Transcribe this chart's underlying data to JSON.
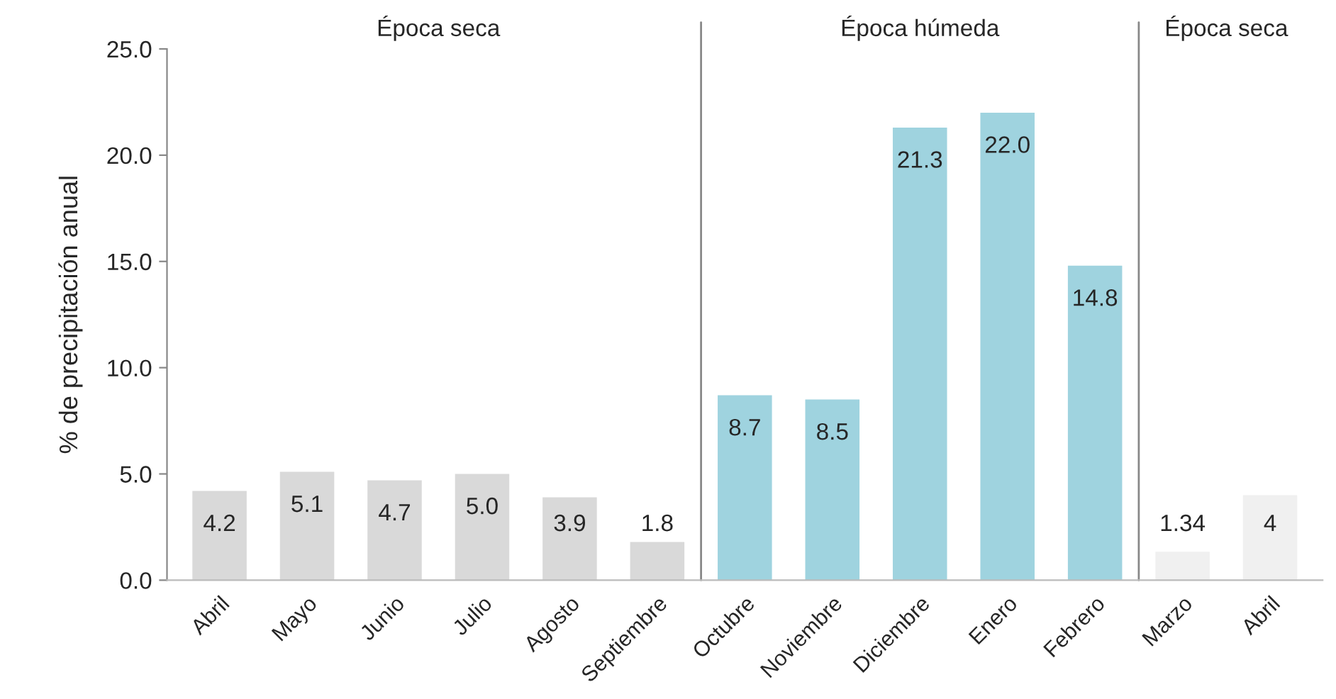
{
  "chart_data": {
    "type": "bar",
    "ylabel": "% de precipitación anual",
    "categories": [
      "Abril",
      "Mayo",
      "Junio",
      "Julio",
      "Agosto",
      "Septiembre",
      "Octubre",
      "Noviembre",
      "Diciembre",
      "Enero",
      "Febrero",
      "Marzo",
      "Abril"
    ],
    "values": [
      4.2,
      5.1,
      4.7,
      5.0,
      3.9,
      1.8,
      8.7,
      8.5,
      21.3,
      22.0,
      14.8,
      1.34,
      4
    ],
    "value_labels": [
      "4.2",
      "5.1",
      "4.7",
      "5.0",
      "3.9",
      "1.8",
      "8.7",
      "8.5",
      "21.3",
      "22.0",
      "14.8",
      "1.34",
      "4"
    ],
    "colors": [
      "#d9d9d9",
      "#d9d9d9",
      "#d9d9d9",
      "#d9d9d9",
      "#d9d9d9",
      "#d9d9d9",
      "#9fd3df",
      "#9fd3df",
      "#9fd3df",
      "#9fd3df",
      "#9fd3df",
      "#f0f0f0",
      "#f0f0f0"
    ],
    "ylim": [
      0,
      25
    ],
    "yticks": [
      {
        "value": 0,
        "label": "0.0"
      },
      {
        "value": 5,
        "label": "5.0"
      },
      {
        "value": 10,
        "label": "10.0"
      },
      {
        "value": 15,
        "label": "15.0"
      },
      {
        "value": 20,
        "label": "20.0"
      },
      {
        "value": 25,
        "label": "25.0"
      }
    ],
    "annotations": [
      "Época seca",
      "Época húmeda",
      "Época seca"
    ],
    "ref_lines": [
      {
        "axis": "x",
        "value": "Octubre",
        "color": "#888888"
      },
      {
        "axis": "x",
        "value": "Marzo",
        "color": "#888888"
      }
    ],
    "grid": false,
    "legend": false
  }
}
